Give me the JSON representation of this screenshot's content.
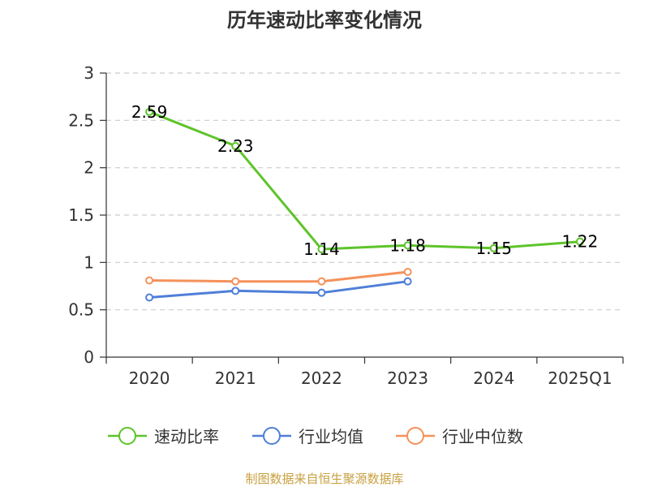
{
  "chart_data": {
    "type": "line",
    "title": "历年速动比率变化情况",
    "categories": [
      "2020",
      "2021",
      "2022",
      "2023",
      "2024",
      "2025Q1"
    ],
    "y_ticks": [
      "0",
      "0.5",
      "1",
      "1.5",
      "2",
      "2.5",
      "3"
    ],
    "ylim": [
      0,
      3
    ],
    "grid": "horizontal-dashed",
    "legend_position": "bottom",
    "series": [
      {
        "name": "速动比率",
        "color": "#5ec42a",
        "values": [
          2.59,
          2.23,
          1.14,
          1.18,
          1.15,
          1.22
        ],
        "labels": [
          "2.59",
          "2.23",
          "1.14",
          "1.18",
          "1.15",
          "1.22"
        ]
      },
      {
        "name": "行业均值",
        "color": "#4f7fd8",
        "values": [
          0.63,
          0.7,
          0.68,
          0.8,
          null,
          null
        ]
      },
      {
        "name": "行业中位数",
        "color": "#f5915a",
        "values": [
          0.81,
          0.8,
          0.8,
          0.9,
          null,
          null
        ]
      }
    ],
    "source": "制图数据来自恒生聚源数据库",
    "source_color": "#c8a040"
  }
}
